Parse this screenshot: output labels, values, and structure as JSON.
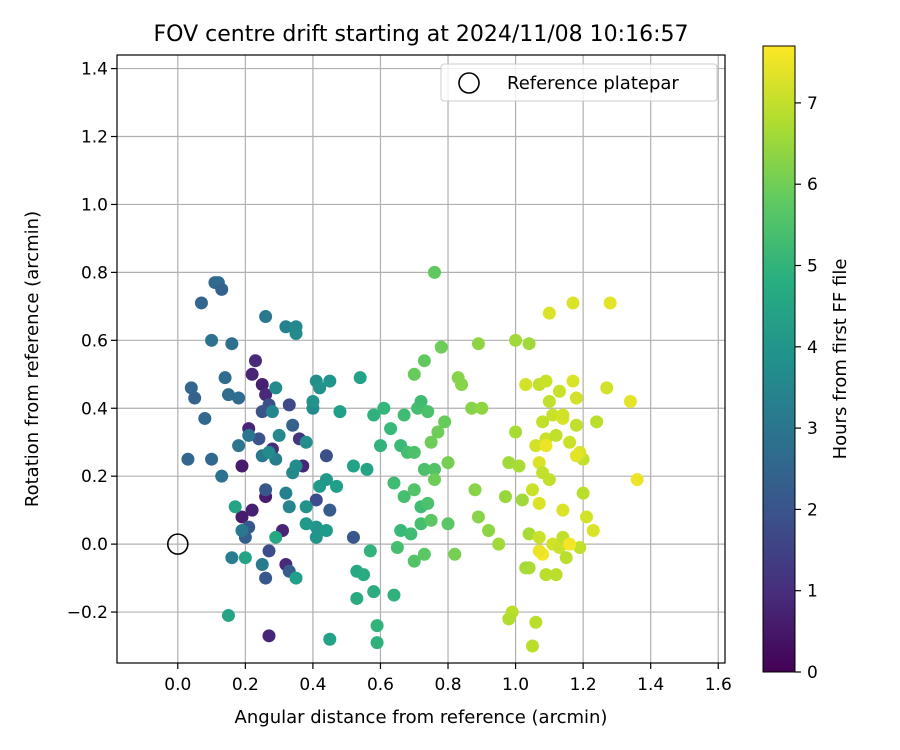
{
  "chart_data": {
    "type": "scatter",
    "title": "FOV centre drift starting at 2024/11/08 10:16:57",
    "xlabel": "Angular distance from reference (arcmin)",
    "ylabel": "Rotation from reference (arcmin)",
    "xlim": [
      -0.18,
      1.62
    ],
    "ylim": [
      -0.35,
      1.44
    ],
    "xticks": [
      "0.0",
      "0.2",
      "0.4",
      "0.6",
      "0.8",
      "1.0",
      "1.2",
      "1.4",
      "1.6"
    ],
    "yticks": [
      "−0.2",
      "0.0",
      "0.2",
      "0.4",
      "0.6",
      "0.8",
      "1.0",
      "1.2",
      "1.4"
    ],
    "grid": true,
    "legend": {
      "position": "top-right",
      "entries": [
        "Reference platepar"
      ]
    },
    "reference_point": {
      "x": 0.0,
      "y": 0.0
    },
    "colorbar": {
      "label": "Hours from first FF file",
      "range": [
        0,
        7.7
      ],
      "ticks": [
        "0",
        "1",
        "2",
        "3",
        "4",
        "5",
        "6",
        "7"
      ],
      "colormap": "viridis"
    },
    "points": [
      [
        0.27,
        -0.27,
        0.8
      ],
      [
        0.23,
        0.54,
        0.9
      ],
      [
        0.22,
        0.5,
        0.8
      ],
      [
        0.25,
        0.47,
        0.7
      ],
      [
        0.26,
        0.44,
        0.9
      ],
      [
        0.21,
        0.34,
        0.8
      ],
      [
        0.28,
        0.28,
        1.0
      ],
      [
        0.19,
        0.23,
        0.6
      ],
      [
        0.26,
        0.14,
        0.6
      ],
      [
        0.22,
        0.1,
        0.7
      ],
      [
        0.19,
        0.08,
        0.6
      ],
      [
        0.31,
        0.04,
        0.8
      ],
      [
        0.32,
        -0.06,
        0.9
      ],
      [
        0.37,
        0.23,
        0.8
      ],
      [
        0.36,
        0.31,
        1.2
      ],
      [
        0.33,
        0.41,
        1.7
      ],
      [
        0.27,
        0.41,
        1.9
      ],
      [
        0.25,
        0.39,
        2.0
      ],
      [
        0.24,
        0.31,
        2.0
      ],
      [
        0.26,
        0.16,
        2.1
      ],
      [
        0.21,
        0.05,
        2.1
      ],
      [
        0.2,
        0.02,
        2.3
      ],
      [
        0.27,
        -0.02,
        1.8
      ],
      [
        0.26,
        -0.1,
        2.1
      ],
      [
        0.33,
        -0.08,
        2.3
      ],
      [
        0.44,
        0.26,
        1.9
      ],
      [
        0.41,
        0.13,
        1.8
      ],
      [
        0.45,
        0.1,
        2.2
      ],
      [
        0.52,
        0.02,
        2.1
      ],
      [
        0.34,
        0.35,
        2.4
      ],
      [
        0.05,
        0.43,
        2.4
      ],
      [
        0.04,
        0.46,
        2.5
      ],
      [
        0.03,
        0.25,
        2.5
      ],
      [
        0.1,
        0.25,
        2.6
      ],
      [
        0.08,
        0.37,
        2.6
      ],
      [
        0.15,
        0.44,
        2.7
      ],
      [
        0.18,
        0.43,
        2.7
      ],
      [
        0.14,
        0.49,
        2.7
      ],
      [
        0.16,
        0.59,
        2.8
      ],
      [
        0.1,
        0.6,
        2.9
      ],
      [
        0.07,
        0.71,
        2.5
      ],
      [
        0.11,
        0.77,
        2.6
      ],
      [
        0.12,
        0.77,
        2.7
      ],
      [
        0.13,
        0.75,
        2.4
      ],
      [
        0.13,
        0.2,
        2.9
      ],
      [
        0.18,
        0.29,
        3.0
      ],
      [
        0.21,
        0.32,
        3.0
      ],
      [
        0.25,
        0.26,
        3.1
      ],
      [
        0.29,
        0.25,
        3.3
      ],
      [
        0.19,
        0.04,
        3.1
      ],
      [
        0.16,
        -0.04,
        3.3
      ],
      [
        0.25,
        -0.06,
        3.2
      ],
      [
        0.26,
        0.67,
        3.1
      ],
      [
        0.32,
        0.64,
        3.4
      ],
      [
        0.35,
        0.64,
        3.6
      ],
      [
        0.35,
        0.62,
        3.7
      ],
      [
        0.28,
        0.39,
        3.5
      ],
      [
        0.27,
        0.27,
        3.7
      ],
      [
        0.32,
        0.15,
        3.4
      ],
      [
        0.33,
        0.11,
        3.5
      ],
      [
        0.34,
        0.21,
        3.6
      ],
      [
        0.35,
        0.23,
        3.7
      ],
      [
        0.3,
        0.32,
        3.6
      ],
      [
        0.29,
        0.46,
        3.7
      ],
      [
        0.38,
        0.3,
        3.8
      ],
      [
        0.4,
        0.4,
        3.7
      ],
      [
        0.41,
        0.48,
        3.8
      ],
      [
        0.42,
        0.46,
        3.9
      ],
      [
        0.45,
        0.48,
        4.0
      ],
      [
        0.4,
        0.42,
        3.9
      ],
      [
        0.38,
        0.11,
        3.9
      ],
      [
        0.41,
        0.05,
        4.0
      ],
      [
        0.41,
        0.02,
        4.0
      ],
      [
        0.38,
        0.06,
        4.1
      ],
      [
        0.44,
        0.04,
        4.2
      ],
      [
        0.42,
        0.17,
        4.2
      ],
      [
        0.44,
        0.19,
        4.1
      ],
      [
        0.47,
        0.17,
        4.3
      ],
      [
        0.48,
        0.39,
        4.3
      ],
      [
        0.52,
        0.23,
        4.4
      ],
      [
        0.56,
        0.22,
        4.5
      ],
      [
        0.54,
        0.49,
        4.4
      ],
      [
        0.35,
        -0.1,
        4.3
      ],
      [
        0.45,
        -0.28,
        4.4
      ],
      [
        0.15,
        -0.21,
        4.5
      ],
      [
        0.17,
        0.11,
        4.5
      ],
      [
        0.2,
        -0.04,
        4.5
      ],
      [
        0.29,
        0.02,
        4.6
      ],
      [
        0.53,
        -0.08,
        4.6
      ],
      [
        0.53,
        -0.16,
        4.7
      ],
      [
        0.55,
        -0.09,
        4.7
      ],
      [
        0.58,
        -0.14,
        4.8
      ],
      [
        0.57,
        -0.02,
        5.0
      ],
      [
        0.59,
        -0.29,
        4.9
      ],
      [
        0.59,
        -0.24,
        5.0
      ],
      [
        0.64,
        -0.15,
        4.9
      ],
      [
        0.6,
        0.29,
        5.0
      ],
      [
        0.58,
        0.38,
        4.9
      ],
      [
        0.61,
        0.4,
        5.1
      ],
      [
        0.63,
        0.34,
        5.2
      ],
      [
        0.66,
        0.29,
        5.2
      ],
      [
        0.67,
        0.38,
        5.3
      ],
      [
        0.71,
        0.4,
        5.4
      ],
      [
        0.72,
        0.42,
        5.3
      ],
      [
        0.74,
        0.39,
        5.5
      ],
      [
        0.68,
        0.27,
        5.4
      ],
      [
        0.7,
        0.27,
        5.5
      ],
      [
        0.73,
        0.22,
        5.5
      ],
      [
        0.76,
        0.22,
        5.6
      ],
      [
        0.64,
        0.18,
        5.3
      ],
      [
        0.67,
        0.14,
        5.4
      ],
      [
        0.7,
        0.16,
        5.6
      ],
      [
        0.72,
        0.11,
        5.3
      ],
      [
        0.66,
        0.04,
        5.2
      ],
      [
        0.69,
        0.03,
        5.3
      ],
      [
        0.72,
        0.06,
        5.4
      ],
      [
        0.74,
        0.12,
        5.5
      ],
      [
        0.75,
        0.07,
        5.7
      ],
      [
        0.65,
        -0.01,
        5.4
      ],
      [
        0.7,
        -0.05,
        5.6
      ],
      [
        0.73,
        -0.03,
        5.7
      ],
      [
        0.7,
        0.5,
        5.9
      ],
      [
        0.73,
        0.54,
        5.8
      ],
      [
        0.76,
        0.8,
        5.8
      ],
      [
        0.78,
        0.58,
        6.0
      ],
      [
        0.79,
        0.36,
        5.9
      ],
      [
        0.77,
        0.33,
        6.0
      ],
      [
        0.75,
        0.3,
        6.0
      ],
      [
        0.8,
        0.24,
        6.1
      ],
      [
        0.76,
        0.19,
        6.0
      ],
      [
        0.8,
        0.06,
        5.7
      ],
      [
        0.82,
        -0.03,
        6.1
      ],
      [
        0.83,
        0.49,
        6.3
      ],
      [
        0.84,
        0.47,
        6.3
      ],
      [
        0.87,
        0.4,
        6.3
      ],
      [
        0.89,
        0.59,
        6.4
      ],
      [
        0.9,
        0.4,
        6.4
      ],
      [
        0.88,
        0.16,
        6.3
      ],
      [
        0.89,
        0.08,
        6.3
      ],
      [
        0.92,
        0.04,
        6.4
      ],
      [
        0.95,
        0.0,
        6.6
      ],
      [
        0.97,
        0.14,
        6.5
      ],
      [
        1.0,
        0.6,
        6.6
      ],
      [
        1.04,
        0.59,
        6.6
      ],
      [
        1.0,
        0.33,
        6.7
      ],
      [
        0.98,
        0.24,
        6.6
      ],
      [
        1.01,
        0.23,
        6.7
      ],
      [
        0.99,
        -0.2,
        6.9
      ],
      [
        0.98,
        -0.22,
        6.8
      ],
      [
        1.05,
        -0.3,
        6.9
      ],
      [
        1.02,
        0.13,
        6.6
      ],
      [
        1.03,
        -0.07,
        6.7
      ],
      [
        1.04,
        -0.07,
        6.7
      ],
      [
        1.04,
        0.03,
        6.7
      ],
      [
        1.06,
        -0.23,
        6.9
      ],
      [
        1.03,
        0.47,
        7.2
      ],
      [
        1.07,
        0.47,
        7.0
      ],
      [
        1.09,
        0.48,
        7.1
      ],
      [
        1.1,
        0.42,
        7.0
      ],
      [
        1.11,
        0.38,
        7.1
      ],
      [
        1.14,
        0.37,
        7.3
      ],
      [
        1.18,
        0.43,
        7.2
      ],
      [
        1.17,
        0.48,
        7.3
      ],
      [
        1.13,
        0.45,
        7.1
      ],
      [
        1.1,
        0.68,
        7.3
      ],
      [
        1.17,
        0.71,
        7.3
      ],
      [
        1.28,
        0.71,
        7.4
      ],
      [
        1.27,
        0.46,
        7.2
      ],
      [
        1.34,
        0.42,
        7.4
      ],
      [
        1.36,
        0.19,
        7.5
      ],
      [
        1.08,
        0.36,
        7.0
      ],
      [
        1.09,
        0.31,
        7.1
      ],
      [
        1.12,
        0.32,
        7.0
      ],
      [
        1.14,
        0.38,
        7.2
      ],
      [
        1.16,
        0.3,
        7.1
      ],
      [
        1.18,
        0.35,
        7.0
      ],
      [
        1.2,
        0.25,
        7.0
      ],
      [
        1.24,
        0.36,
        6.9
      ],
      [
        1.19,
        0.27,
        7.3
      ],
      [
        1.18,
        0.26,
        7.4
      ],
      [
        1.06,
        0.29,
        7.2
      ],
      [
        1.07,
        0.24,
        7.3
      ],
      [
        1.08,
        0.21,
        7.0
      ],
      [
        1.1,
        0.19,
        7.0
      ],
      [
        1.05,
        0.16,
        7.1
      ],
      [
        1.07,
        0.12,
        7.3
      ],
      [
        1.14,
        0.1,
        7.3
      ],
      [
        1.2,
        0.15,
        6.9
      ],
      [
        1.21,
        0.08,
        7.2
      ],
      [
        1.23,
        0.04,
        7.3
      ],
      [
        1.07,
        0.02,
        7.1
      ],
      [
        1.11,
        0.0,
        7.2
      ],
      [
        1.13,
        -0.01,
        7.1
      ],
      [
        1.14,
        0.02,
        7.0
      ],
      [
        1.19,
        -0.01,
        7.0
      ],
      [
        1.16,
        0.0,
        7.6
      ],
      [
        1.12,
        -0.09,
        6.9
      ],
      [
        1.09,
        -0.09,
        6.9
      ],
      [
        1.15,
        -0.04,
        6.9
      ],
      [
        1.08,
        -0.03,
        7.6
      ],
      [
        1.07,
        -0.02,
        7.5
      ],
      [
        1.09,
        0.29,
        7.5
      ]
    ]
  }
}
